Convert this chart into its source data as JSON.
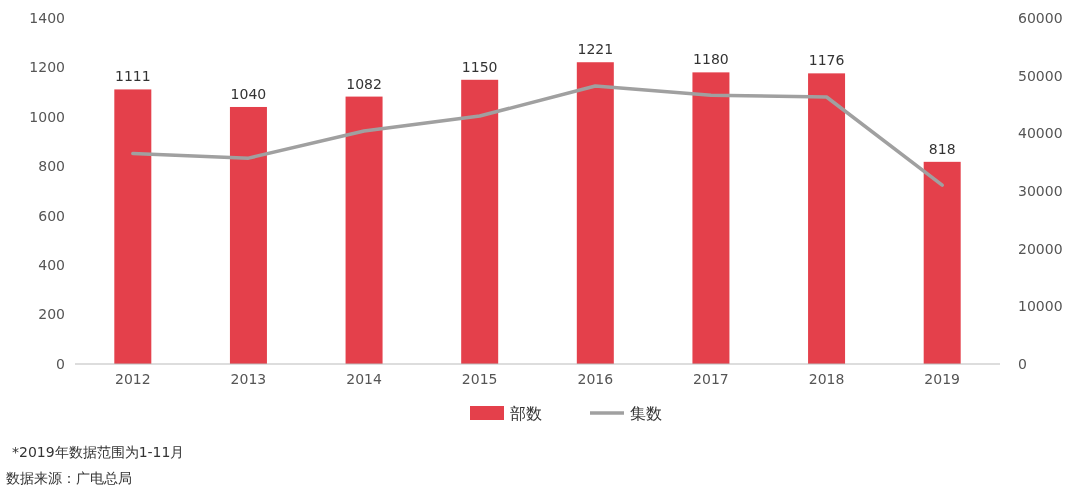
{
  "chart_data": {
    "type": "bar",
    "categories": [
      "2012",
      "2013",
      "2014",
      "2015",
      "2016",
      "2017",
      "2018",
      "2019"
    ],
    "series": [
      {
        "name": "部数",
        "color": "#e4404b",
        "values": [
          1111,
          1040,
          1082,
          1150,
          1221,
          1180,
          1176,
          818
        ],
        "value_labels": [
          "1111",
          "1040",
          "1082",
          "1150",
          "1221",
          "1180",
          "1176",
          "818"
        ]
      },
      {
        "name": "集数",
        "type": "line",
        "axis": "y2",
        "color": "#a0a0a0",
        "values": [
          36500,
          35700,
          40400,
          43000,
          48200,
          46600,
          46300,
          31000
        ]
      }
    ],
    "ylim": [
      0,
      1400
    ],
    "yticks": [
      0,
      200,
      400,
      600,
      800,
      1000,
      1200,
      1400
    ],
    "y2lim": [
      0,
      60000
    ],
    "y2ticks": [
      0,
      10000,
      20000,
      30000,
      40000,
      50000,
      60000
    ],
    "grid": false,
    "legend": "bottom",
    "line_style": "solid",
    "marker": "none",
    "annotations": [
      "*2019年数据范围为1-11月",
      "数据来源：广电总局"
    ]
  }
}
